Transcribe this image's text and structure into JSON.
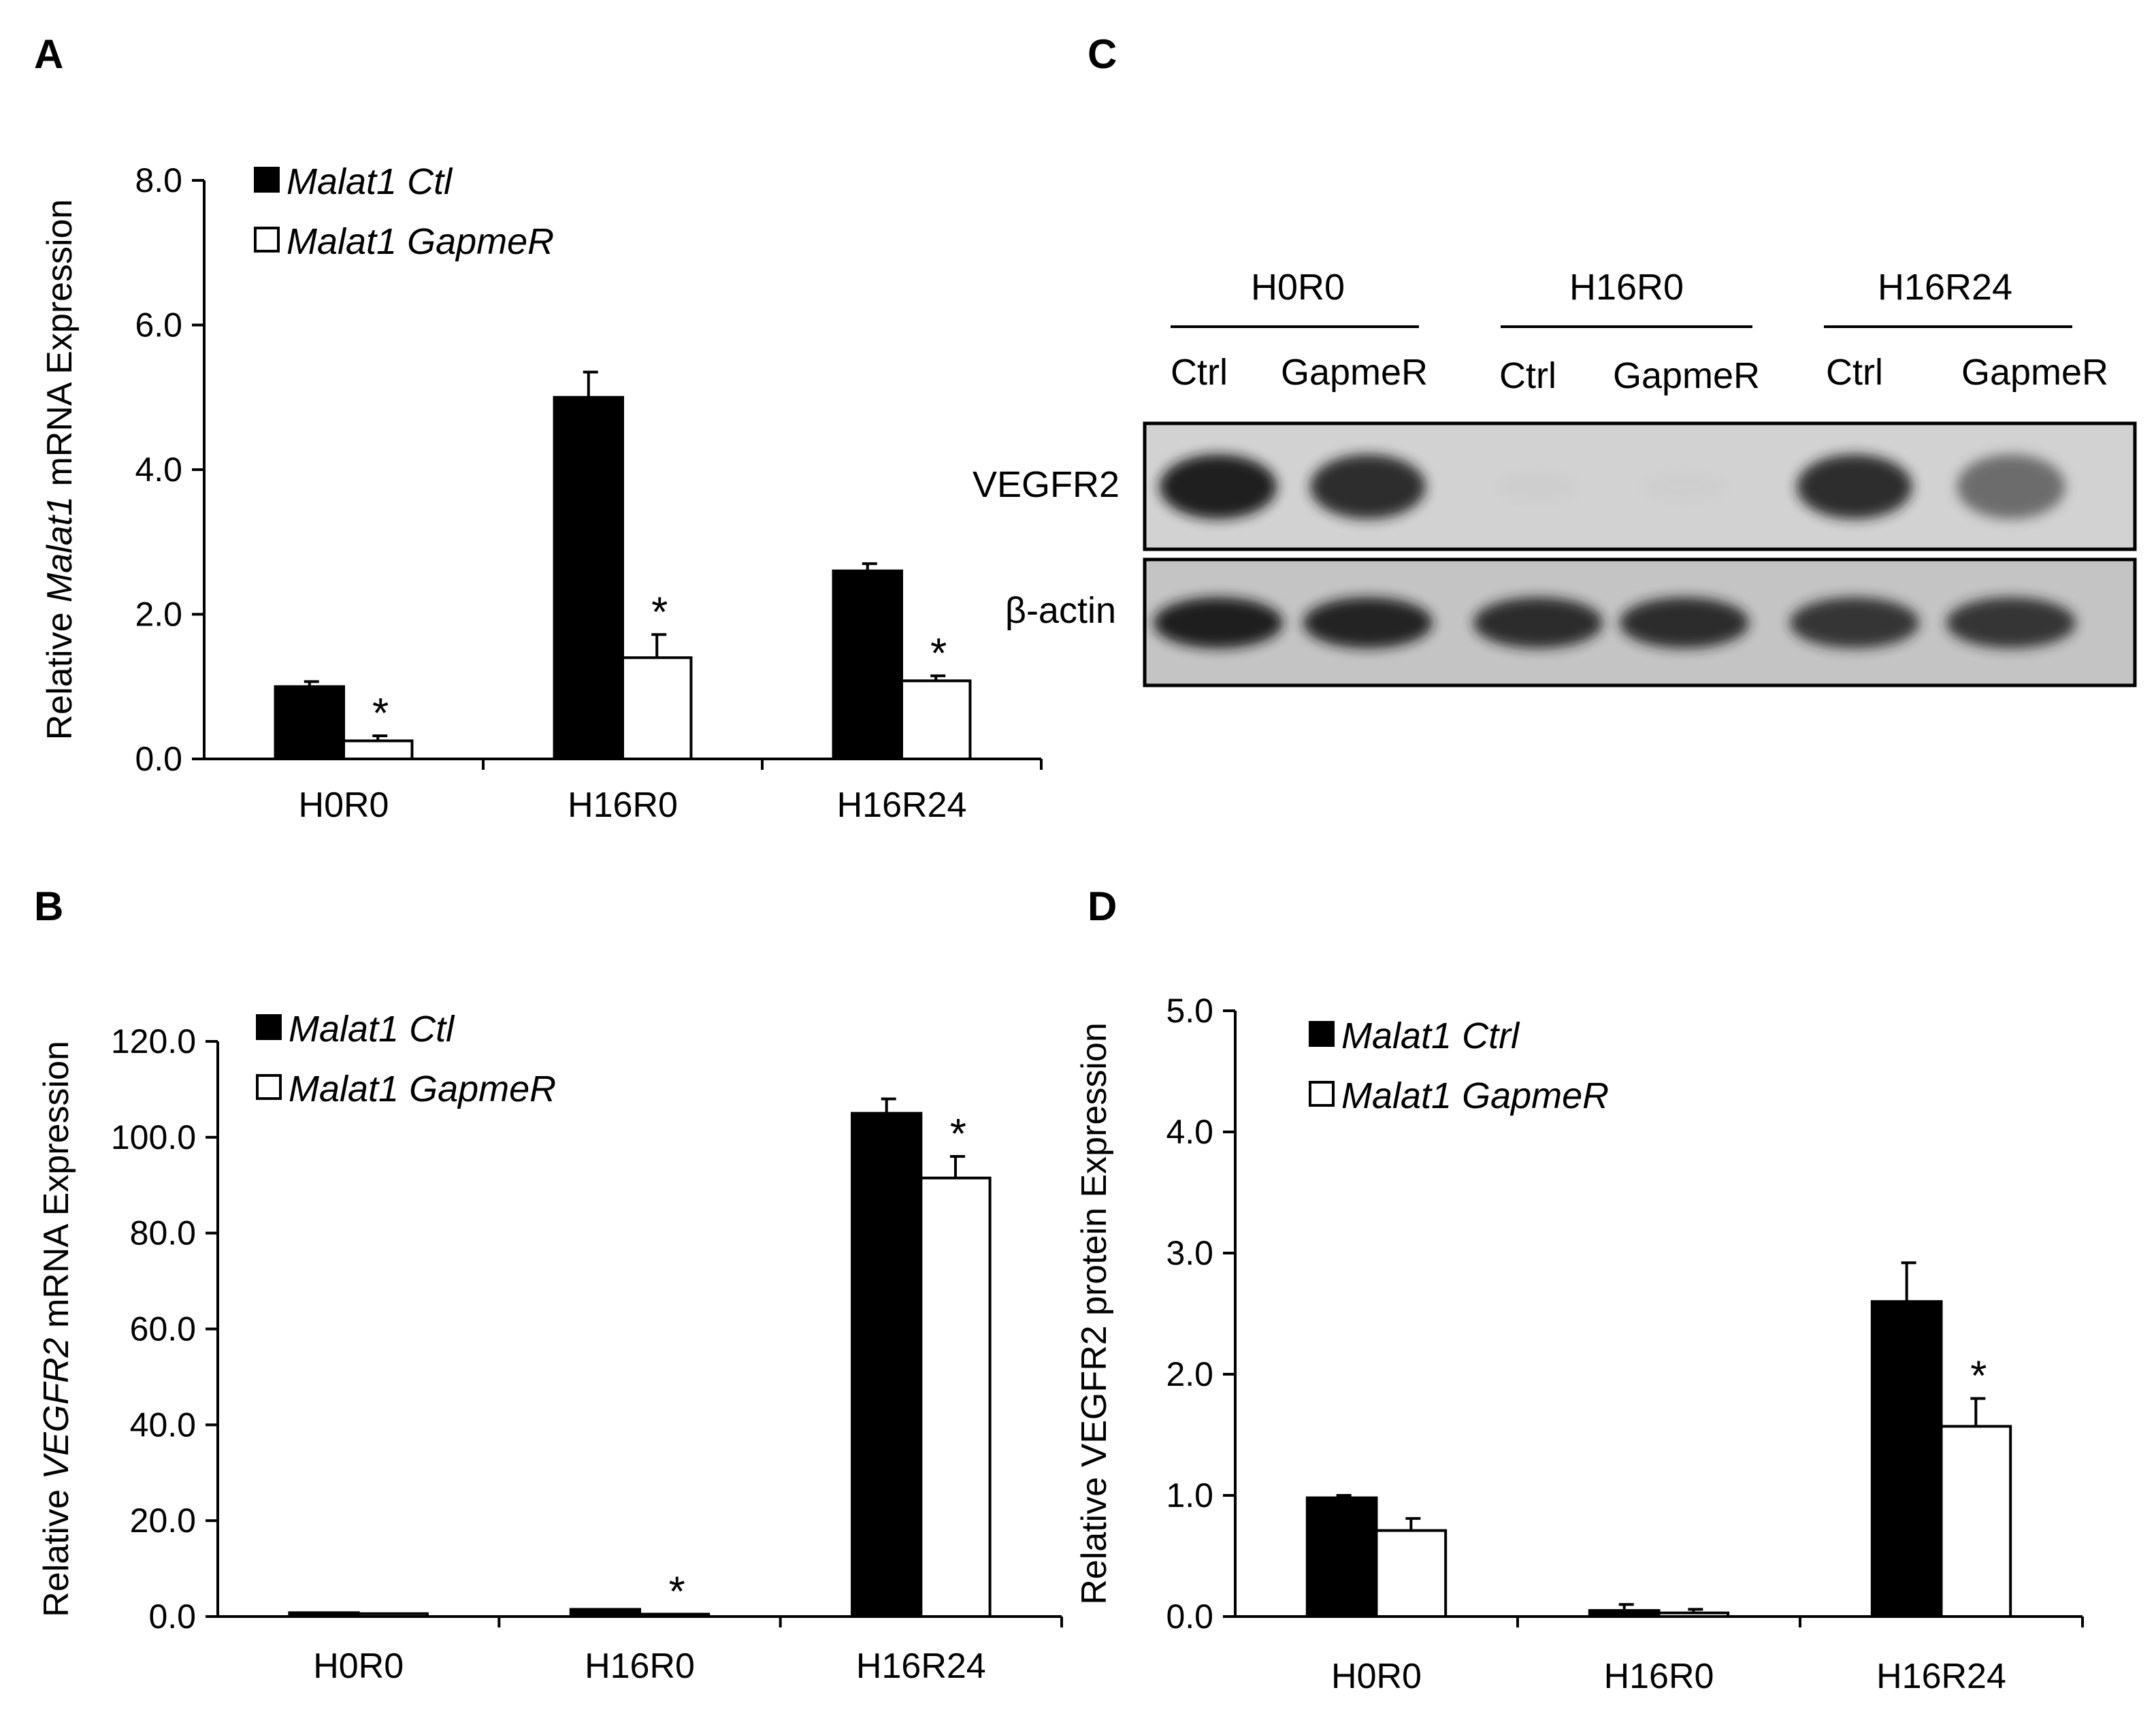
{
  "panels": {
    "A": "A",
    "B": "B",
    "C": "C",
    "D": "D"
  },
  "chart_data": [
    {
      "id": "A",
      "type": "bar",
      "ylabel_parts": [
        "Relative ",
        "Malat1",
        " mRNA Expression"
      ],
      "categories": [
        "H0R0",
        "H16R0",
        "H16R24"
      ],
      "ylim": [
        0,
        8
      ],
      "yticks": [
        0,
        2,
        4,
        6,
        8
      ],
      "tick_labels": [
        "0.0",
        "2.0",
        "4.0",
        "6.0",
        "8.0"
      ],
      "series": [
        {
          "name": "Malat1 Ctl",
          "values": [
            1.0,
            5.0,
            2.6
          ],
          "errors": [
            0.07,
            0.35,
            0.1
          ],
          "color": "#000000"
        },
        {
          "name": "Malat1 GapmeR",
          "values": [
            0.25,
            1.4,
            1.08
          ],
          "errors": [
            0.07,
            0.32,
            0.07
          ],
          "color": "#ffffff"
        }
      ],
      "significance": [
        {
          "category": 0,
          "series": 1,
          "label": "*"
        },
        {
          "category": 1,
          "series": 1,
          "label": "*"
        },
        {
          "category": 2,
          "series": 1,
          "label": "*"
        }
      ],
      "legend_position": "top-left",
      "grid": false
    },
    {
      "id": "B",
      "type": "bar",
      "ylabel_parts": [
        "Relative ",
        "VEGFR2",
        " mRNA Expression"
      ],
      "categories": [
        "H0R0",
        "H16R0",
        "H16R24"
      ],
      "ylim": [
        0,
        120
      ],
      "yticks": [
        0,
        20,
        40,
        60,
        80,
        100,
        120
      ],
      "tick_labels": [
        "0.0",
        "20.0",
        "40.0",
        "60.0",
        "80.0",
        "100.0",
        "120.0"
      ],
      "series": [
        {
          "name": "Malat1 Ctl",
          "values": [
            0.8,
            1.5,
            105
          ],
          "errors": [
            0,
            0,
            3
          ],
          "color": "#000000"
        },
        {
          "name": "Malat1 GapmeR",
          "values": [
            0.6,
            0.5,
            91.5
          ],
          "errors": [
            0,
            0,
            4.5
          ],
          "color": "#ffffff"
        }
      ],
      "significance": [
        {
          "category": 1,
          "series": 1,
          "label": "*"
        },
        {
          "category": 2,
          "series": 1,
          "label": "*"
        }
      ],
      "legend_position": "top-left",
      "grid": false
    },
    {
      "id": "D",
      "type": "bar",
      "ylabel_parts": [
        "Relative VEGFR2 protein Expression"
      ],
      "categories": [
        "H0R0",
        "H16R0",
        "H16R24"
      ],
      "ylim": [
        0,
        5
      ],
      "yticks": [
        0,
        1,
        2,
        3,
        4,
        5
      ],
      "tick_labels": [
        "0.0",
        "1.0",
        "2.0",
        "3.0",
        "4.0",
        "5.0"
      ],
      "series": [
        {
          "name": "Malat1 Ctrl",
          "values": [
            0.98,
            0.05,
            2.6
          ],
          "errors": [
            0.02,
            0.05,
            0.32
          ],
          "color": "#000000"
        },
        {
          "name": "Malat1 GapmeR",
          "values": [
            0.71,
            0.03,
            1.57
          ],
          "errors": [
            0.1,
            0.03,
            0.23
          ],
          "color": "#ffffff"
        }
      ],
      "significance": [
        {
          "category": 2,
          "series": 1,
          "label": "*"
        }
      ],
      "legend_position": "top-left",
      "grid": false
    }
  ],
  "blot": {
    "groups": [
      "H0R0",
      "H16R0",
      "H16R24"
    ],
    "lanes": [
      "Ctrl",
      "GapmeR",
      "Ctrl",
      "GapmeR",
      "Ctrl",
      "GapmeR"
    ],
    "rows": [
      {
        "label": "VEGFR2",
        "intensities": [
          0.95,
          0.9,
          0.08,
          0.07,
          0.9,
          0.7
        ]
      },
      {
        "label": "β-actin",
        "intensities": [
          0.95,
          0.92,
          0.9,
          0.9,
          0.88,
          0.88
        ]
      }
    ]
  }
}
